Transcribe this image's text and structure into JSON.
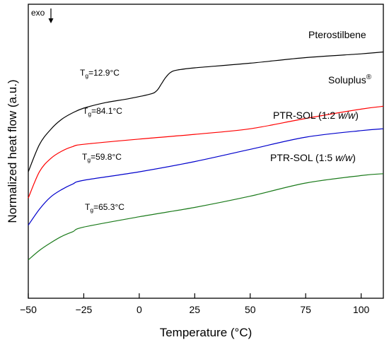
{
  "chart_data": {
    "type": "line",
    "title": "",
    "xlabel": "Temperature (°C)",
    "ylabel": "Normalized heat flow (a.u.)",
    "xlim": [
      -50,
      110
    ],
    "xticks": [
      -50,
      -25,
      0,
      25,
      50,
      75,
      100
    ],
    "y_tick_labels": false,
    "grid": false,
    "exo_label": "exo",
    "exo_direction": "down",
    "series": [
      {
        "name": "Pterostilbene",
        "color": "#000000",
        "glass_transition": {
          "prefix": "T",
          "sub": "g",
          "value": "=12.9°C"
        },
        "points": [
          [
            -50,
            6.75
          ],
          [
            -45,
            8.2
          ],
          [
            -40,
            9.0
          ],
          [
            -35,
            9.55
          ],
          [
            -30,
            9.9
          ],
          [
            -25,
            10.15
          ],
          [
            -15,
            10.45
          ],
          [
            -5,
            10.65
          ],
          [
            5,
            10.9
          ],
          [
            8,
            11.1
          ],
          [
            10,
            11.45
          ],
          [
            12,
            11.8
          ],
          [
            14,
            12.05
          ],
          [
            17,
            12.18
          ],
          [
            25,
            12.3
          ],
          [
            50,
            12.55
          ],
          [
            75,
            12.85
          ],
          [
            100,
            13.05
          ],
          [
            110,
            13.15
          ]
        ]
      },
      {
        "name": "Soluplus®",
        "color": "#ff0000",
        "glass_transition": {
          "prefix": "T",
          "sub": "g",
          "value": "=84.1°C"
        },
        "points": [
          [
            -50,
            5.35
          ],
          [
            -45,
            6.75
          ],
          [
            -40,
            7.45
          ],
          [
            -35,
            7.85
          ],
          [
            -30,
            8.1
          ],
          [
            -25,
            8.22
          ],
          [
            0,
            8.5
          ],
          [
            25,
            8.75
          ],
          [
            50,
            9.05
          ],
          [
            75,
            9.6
          ],
          [
            100,
            10.1
          ],
          [
            110,
            10.25
          ]
        ]
      },
      {
        "name": "PTR-SOL (1:2 w/w)",
        "color": "#0000cc",
        "glass_transition": {
          "prefix": "T",
          "sub": "g",
          "value": "=59.8°C"
        },
        "points": [
          [
            -50,
            3.9
          ],
          [
            -45,
            4.75
          ],
          [
            -40,
            5.4
          ],
          [
            -35,
            5.8
          ],
          [
            -30,
            6.1
          ],
          [
            -25,
            6.3
          ],
          [
            0,
            6.75
          ],
          [
            25,
            7.3
          ],
          [
            50,
            7.95
          ],
          [
            75,
            8.6
          ],
          [
            100,
            8.95
          ],
          [
            110,
            9.05
          ]
        ]
      },
      {
        "name": "PTR-SOL (1:5 w/w)",
        "color": "#1a7a1a",
        "glass_transition": {
          "prefix": "T",
          "sub": "g",
          "value": "=65.3°C"
        },
        "points": [
          [
            -50,
            2.05
          ],
          [
            -45,
            2.55
          ],
          [
            -40,
            2.95
          ],
          [
            -35,
            3.3
          ],
          [
            -30,
            3.55
          ],
          [
            -25,
            3.8
          ],
          [
            0,
            4.35
          ],
          [
            25,
            4.85
          ],
          [
            50,
            5.45
          ],
          [
            75,
            6.15
          ],
          [
            100,
            6.55
          ],
          [
            110,
            6.65
          ]
        ]
      }
    ]
  }
}
